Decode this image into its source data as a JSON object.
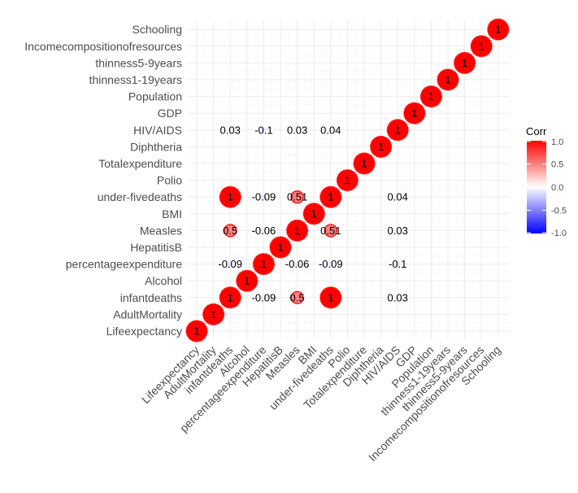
{
  "chart_data": {
    "type": "heatmap",
    "variables": [
      "Lifeexpectancy",
      "AdultMortality",
      "infantdeaths",
      "Alcohol",
      "percentageexpenditure",
      "HepatitisB",
      "Measles",
      "BMI",
      "under-fivedeaths",
      "Polio",
      "Totalexpenditure",
      "Diphtheria",
      "HIV/AIDS",
      "GDP",
      "Population",
      "thinness1-19years",
      "thinness5-9years",
      "Incomecompositionofresources",
      "Schooling"
    ],
    "cells": [
      {
        "x": "Lifeexpectancy",
        "y": "Lifeexpectancy",
        "value": 1,
        "label": "1"
      },
      {
        "x": "AdultMortality",
        "y": "AdultMortality",
        "value": 1,
        "label": "1"
      },
      {
        "x": "infantdeaths",
        "y": "infantdeaths",
        "value": 1,
        "label": "1"
      },
      {
        "x": "Alcohol",
        "y": "Alcohol",
        "value": 1,
        "label": "1"
      },
      {
        "x": "percentageexpenditure",
        "y": "percentageexpenditure",
        "value": 1,
        "label": "1"
      },
      {
        "x": "HepatitisB",
        "y": "HepatitisB",
        "value": 1,
        "label": "1"
      },
      {
        "x": "Measles",
        "y": "Measles",
        "value": 1,
        "label": "1"
      },
      {
        "x": "BMI",
        "y": "BMI",
        "value": 1,
        "label": "1"
      },
      {
        "x": "under-fivedeaths",
        "y": "under-fivedeaths",
        "value": 1,
        "label": "1"
      },
      {
        "x": "Polio",
        "y": "Polio",
        "value": 1,
        "label": "1"
      },
      {
        "x": "Totalexpenditure",
        "y": "Totalexpenditure",
        "value": 1,
        "label": "1"
      },
      {
        "x": "Diphtheria",
        "y": "Diphtheria",
        "value": 1,
        "label": "1"
      },
      {
        "x": "HIV/AIDS",
        "y": "HIV/AIDS",
        "value": 1,
        "label": "1"
      },
      {
        "x": "GDP",
        "y": "GDP",
        "value": 1,
        "label": "1"
      },
      {
        "x": "Population",
        "y": "Population",
        "value": 1,
        "label": "1"
      },
      {
        "x": "thinness1-19years",
        "y": "thinness1-19years",
        "value": 1,
        "label": "1"
      },
      {
        "x": "thinness5-9years",
        "y": "thinness5-9years",
        "value": 1,
        "label": "1"
      },
      {
        "x": "Incomecompositionofresources",
        "y": "Incomecompositionofresources",
        "value": 1,
        "label": "1"
      },
      {
        "x": "Schooling",
        "y": "Schooling",
        "value": 1,
        "label": "1"
      },
      {
        "x": "infantdeaths",
        "y": "under-fivedeaths",
        "value": 1,
        "label": "1"
      },
      {
        "x": "under-fivedeaths",
        "y": "infantdeaths",
        "value": 1,
        "label": "1"
      },
      {
        "x": "Measles",
        "y": "infantdeaths",
        "value": 0.5,
        "label": "0.5"
      },
      {
        "x": "infantdeaths",
        "y": "Measles",
        "value": 0.5,
        "label": "0.5"
      },
      {
        "x": "Measles",
        "y": "under-fivedeaths",
        "value": 0.51,
        "label": "0.51"
      },
      {
        "x": "under-fivedeaths",
        "y": "Measles",
        "value": 0.51,
        "label": "0.51"
      },
      {
        "x": "percentageexpenditure",
        "y": "infantdeaths",
        "value": -0.09,
        "label": "-0.09"
      },
      {
        "x": "infantdeaths",
        "y": "percentageexpenditure",
        "value": -0.09,
        "label": "-0.09"
      },
      {
        "x": "percentageexpenditure",
        "y": "under-fivedeaths",
        "value": -0.09,
        "label": "-0.09"
      },
      {
        "x": "under-fivedeaths",
        "y": "percentageexpenditure",
        "value": -0.09,
        "label": "-0.09"
      },
      {
        "x": "percentageexpenditure",
        "y": "Measles",
        "value": -0.06,
        "label": "-0.06"
      },
      {
        "x": "Measles",
        "y": "percentageexpenditure",
        "value": -0.06,
        "label": "-0.06"
      },
      {
        "x": "percentageexpenditure",
        "y": "HIV/AIDS",
        "value": -0.1,
        "label": "-0.1"
      },
      {
        "x": "HIV/AIDS",
        "y": "percentageexpenditure",
        "value": -0.1,
        "label": "-0.1"
      },
      {
        "x": "HIV/AIDS",
        "y": "infantdeaths",
        "value": 0.03,
        "label": "0.03"
      },
      {
        "x": "infantdeaths",
        "y": "HIV/AIDS",
        "value": 0.03,
        "label": "0.03"
      },
      {
        "x": "HIV/AIDS",
        "y": "Measles",
        "value": 0.03,
        "label": "0.03"
      },
      {
        "x": "Measles",
        "y": "HIV/AIDS",
        "value": 0.03,
        "label": "0.03"
      },
      {
        "x": "HIV/AIDS",
        "y": "under-fivedeaths",
        "value": 0.04,
        "label": "0.04"
      },
      {
        "x": "under-fivedeaths",
        "y": "HIV/AIDS",
        "value": 0.04,
        "label": "0.04"
      }
    ],
    "legend": {
      "title": "Corr",
      "ticks": [
        1.0,
        0.5,
        0.0,
        -0.5,
        -1.0
      ],
      "tick_labels": [
        "1.0",
        "0.5",
        "0.0",
        "-0.5",
        "-1.0"
      ],
      "colors": {
        "high": "#ff0000",
        "mid": "#ffffff",
        "low": "#0000ff"
      },
      "position": "right"
    },
    "xlabel": "",
    "ylabel": "",
    "grid": true,
    "value_range": [
      -1,
      1
    ]
  }
}
